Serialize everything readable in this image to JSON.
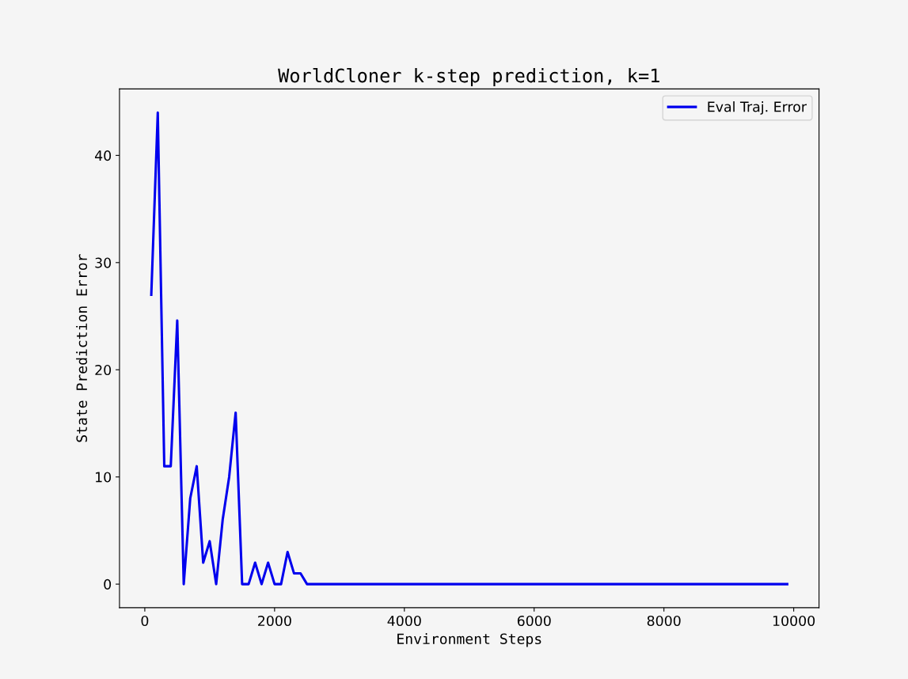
{
  "chart_data": {
    "type": "line",
    "title": "WorldCloner k-step prediction, k=1",
    "xlabel": "Environment Steps",
    "ylabel": "State Prediction Error",
    "x": [
      100,
      200,
      300,
      400,
      500,
      600,
      700,
      800,
      900,
      1000,
      1100,
      1200,
      1300,
      1400,
      1500,
      1600,
      1700,
      1800,
      1900,
      2000,
      2100,
      2200,
      2300,
      2400,
      2500,
      2600,
      2700,
      2800,
      2900,
      3000,
      3100,
      3200,
      3300,
      3400,
      3500,
      3600,
      3700,
      3800,
      3900,
      4000,
      4100,
      4200,
      4300,
      4400,
      4500,
      4600,
      4700,
      4800,
      4900,
      5000,
      5100,
      5200,
      5300,
      5400,
      5500,
      5600,
      5700,
      5800,
      5900,
      6000,
      6100,
      6200,
      6300,
      6400,
      6500,
      6600,
      6700,
      6800,
      6900,
      7000,
      7100,
      7200,
      7300,
      7400,
      7500,
      7600,
      7700,
      7800,
      7900,
      8000,
      8100,
      8200,
      8300,
      8400,
      8500,
      8600,
      8700,
      8800,
      8900,
      9000,
      9100,
      9200,
      9300,
      9400,
      9500,
      9600,
      9700,
      9800,
      9900
    ],
    "series": [
      {
        "name": "Eval Traj. Error",
        "color": "#0000ee",
        "values": [
          27,
          44,
          11,
          11,
          24.6,
          0,
          8,
          11,
          2,
          4,
          0,
          6,
          10,
          16,
          0,
          0,
          2,
          0,
          2,
          0,
          0,
          3,
          1,
          1,
          0,
          0,
          0,
          0,
          0,
          0,
          0,
          0,
          0,
          0,
          0,
          0,
          0,
          0,
          0,
          0,
          0,
          0,
          0,
          0,
          0,
          0,
          0,
          0,
          0,
          0,
          0,
          0,
          0,
          0,
          0,
          0,
          0,
          0,
          0,
          0,
          0,
          0,
          0,
          0,
          0,
          0,
          0,
          0,
          0,
          0,
          0,
          0,
          0,
          0,
          0,
          0,
          0,
          0,
          0,
          0,
          0,
          0,
          0,
          0,
          0,
          0,
          0,
          0,
          0,
          0,
          0,
          0,
          0,
          0,
          0,
          0,
          0,
          0,
          0
        ]
      }
    ],
    "xlim": [
      -390,
      10390
    ],
    "ylim": [
      -2.2,
      46.2
    ],
    "xticks": [
      0,
      2000,
      4000,
      6000,
      8000,
      10000
    ],
    "yticks": [
      0,
      10,
      20,
      30,
      40
    ],
    "grid": false,
    "legend": "top right",
    "marker": "none",
    "line_style": "solid"
  }
}
